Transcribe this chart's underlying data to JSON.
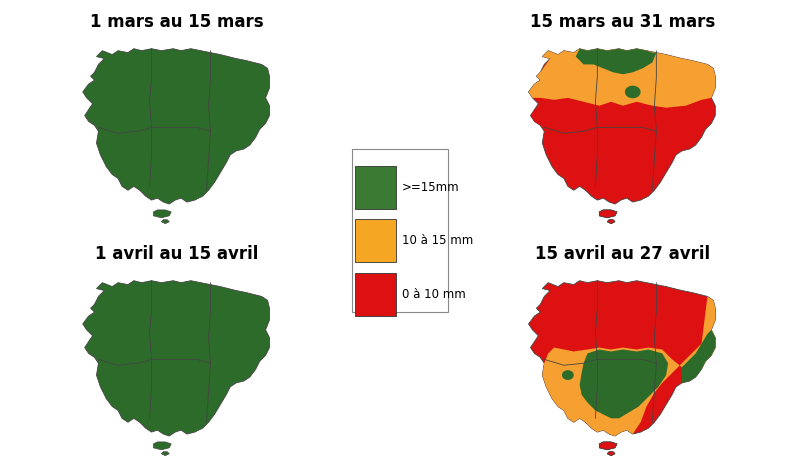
{
  "panels": [
    {
      "title": "1 mars au 15 mars"
    },
    {
      "title": "15 mars au 31 mars"
    },
    {
      "title": "1 avril au 15 avril"
    },
    {
      "title": "15 avril au 27 avril"
    }
  ],
  "legend": {
    "labels": [
      ">=15mm",
      "10 à 15 mm",
      "0 à 10 mm"
    ],
    "colors": [
      "#3a7a32",
      "#f5a623",
      "#dd1111"
    ]
  },
  "colors": {
    "green": "#2d6b2a",
    "orange": "#f5a030",
    "red": "#dd1111",
    "background": "#ffffff",
    "border": "#444444"
  }
}
